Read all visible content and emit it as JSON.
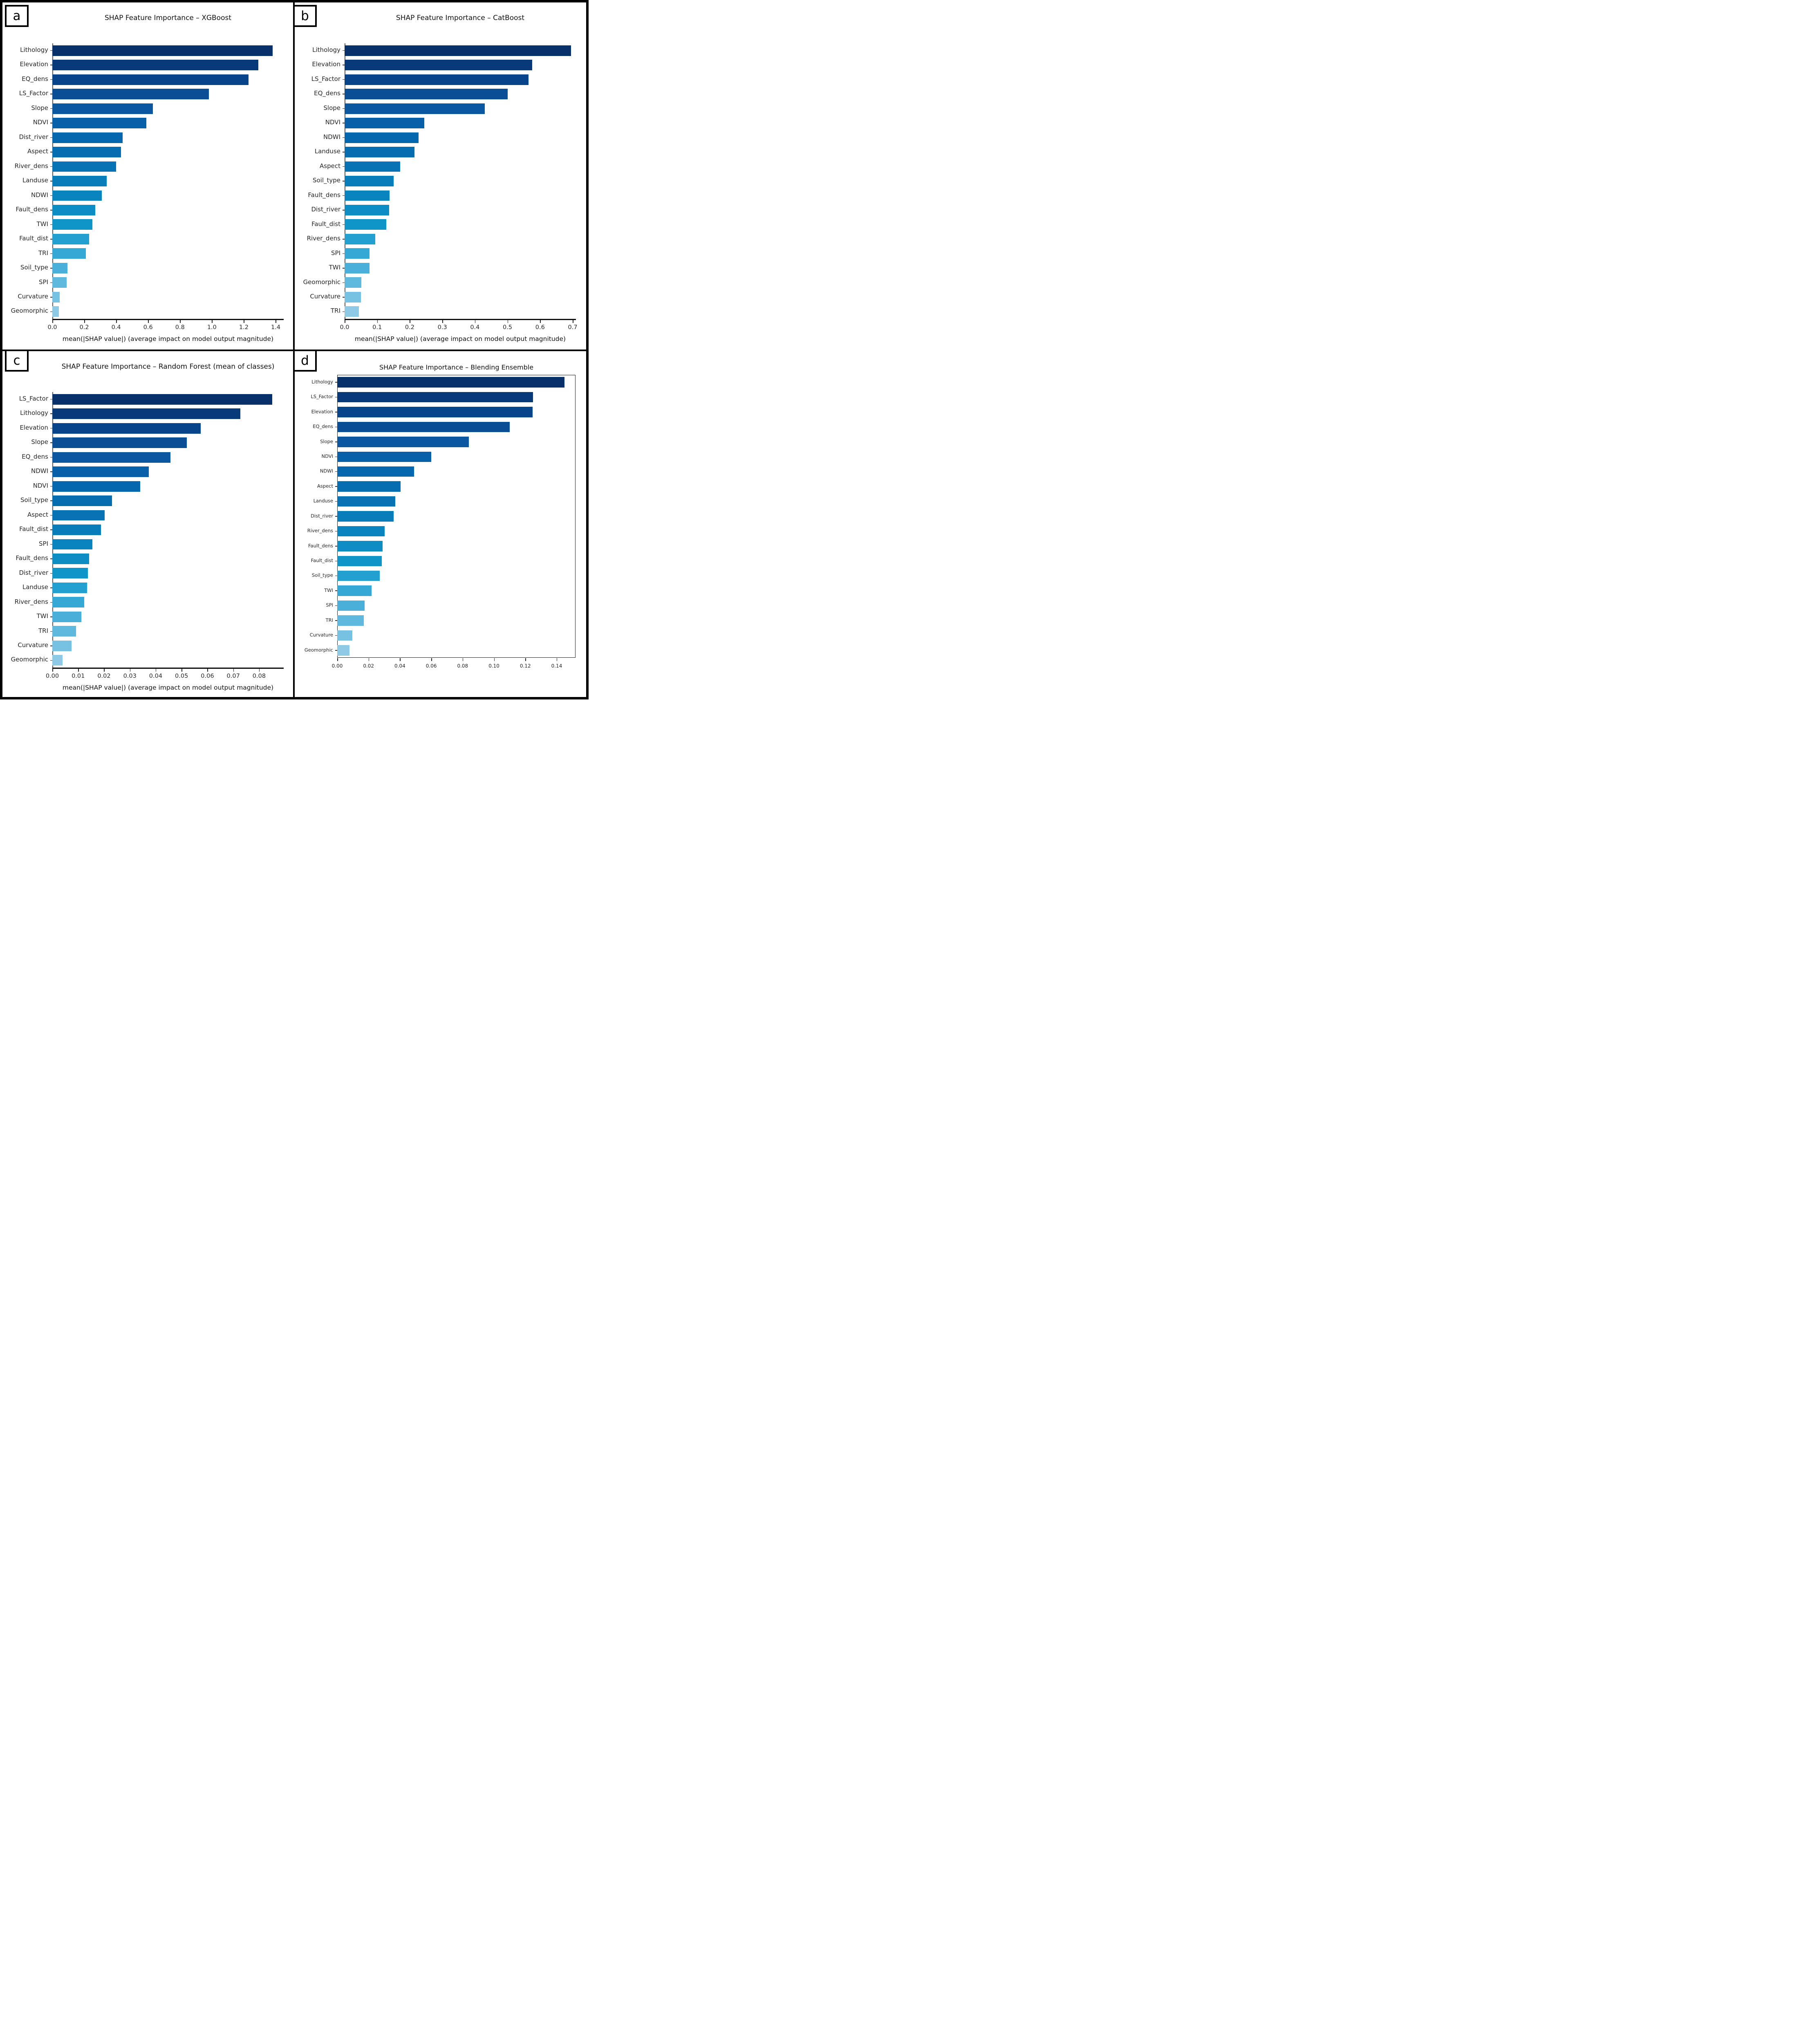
{
  "figure": {
    "panel_letters": [
      "a",
      "b",
      "c",
      "d"
    ],
    "style": {
      "bar_color_ramp": [
        "#08306b",
        "#084489",
        "#0b58a1",
        "#0567ae",
        "#0873b4",
        "#0a84bf",
        "#1095c9",
        "#35a8d6",
        "#5fb8de",
        "#8ecae6"
      ],
      "background": "#ffffff",
      "border_color": "#000000"
    }
  },
  "chart_data": [
    {
      "type": "bar",
      "orientation": "horizontal",
      "panel_letter": "a",
      "title": "SHAP Feature Importance – XGBoost",
      "xlabel": "mean(|SHAP value|) (average impact on model output magnitude)",
      "ylabel": "",
      "xlim": [
        0,
        1.45
      ],
      "grid": false,
      "legend": null,
      "xticks": {
        "values": [
          0.0,
          0.2,
          0.4,
          0.6,
          0.8,
          1.0,
          1.2,
          1.4
        ],
        "labels": [
          "0.0",
          "0.2",
          "0.4",
          "0.6",
          "0.8",
          "1.0",
          "1.2",
          "1.4"
        ]
      },
      "categories": [
        "Lithology",
        "Elevation",
        "EQ_dens",
        "LS_Factor",
        "Slope",
        "NDVI",
        "Dist_river",
        "Aspect",
        "River_dens",
        "Landuse",
        "NDWI",
        "Fault_dens",
        "TWI",
        "Fault_dist",
        "TRI",
        "Soil_type",
        "SPI",
        "Curvature",
        "Geomorphic"
      ],
      "values": [
        1.38,
        1.29,
        1.23,
        0.98,
        0.63,
        0.59,
        0.44,
        0.43,
        0.4,
        0.34,
        0.31,
        0.27,
        0.25,
        0.23,
        0.21,
        0.095,
        0.09,
        0.047,
        0.04
      ]
    },
    {
      "type": "bar",
      "orientation": "horizontal",
      "panel_letter": "b",
      "title": "SHAP Feature Importance – CatBoost",
      "xlabel": "mean(|SHAP value|) (average impact on model output magnitude)",
      "ylabel": "",
      "xlim": [
        0,
        0.71
      ],
      "grid": false,
      "legend": null,
      "xticks": {
        "values": [
          0.0,
          0.1,
          0.2,
          0.3,
          0.4,
          0.5,
          0.6,
          0.7
        ],
        "labels": [
          "0.0",
          "0.1",
          "0.2",
          "0.3",
          "0.4",
          "0.5",
          "0.6",
          "0.7"
        ]
      },
      "categories": [
        "Lithology",
        "Elevation",
        "LS_Factor",
        "EQ_dens",
        "Slope",
        "NDVI",
        "NDWI",
        "Landuse",
        "Aspect",
        "Soil_type",
        "Fault_dens",
        "Dist_river",
        "Fault_dist",
        "River_dens",
        "SPI",
        "TWI",
        "Geomorphic",
        "Curvature",
        "TRI"
      ],
      "values": [
        0.695,
        0.576,
        0.564,
        0.5,
        0.43,
        0.245,
        0.227,
        0.215,
        0.17,
        0.15,
        0.138,
        0.137,
        0.128,
        0.094,
        0.077,
        0.076,
        0.052,
        0.05,
        0.044
      ]
    },
    {
      "type": "bar",
      "orientation": "horizontal",
      "panel_letter": "c",
      "title": "SHAP Feature Importance – Random Forest (mean of classes)",
      "xlabel": "mean(|SHAP value|) (average impact on model output magnitude)",
      "ylabel": "",
      "xlim": [
        0,
        0.0895
      ],
      "grid": false,
      "legend": null,
      "xticks": {
        "values": [
          0.0,
          0.01,
          0.02,
          0.03,
          0.04,
          0.05,
          0.06,
          0.07,
          0.08
        ],
        "labels": [
          "0.00",
          "0.01",
          "0.02",
          "0.03",
          "0.04",
          "0.05",
          "0.06",
          "0.07",
          "0.08"
        ]
      },
      "categories": [
        "LS_Factor",
        "Lithology",
        "Elevation",
        "Slope",
        "EQ_dens",
        "NDWI",
        "NDVI",
        "Soil_type",
        "Aspect",
        "Fault_dist",
        "SPI",
        "Fault_dens",
        "Dist_river",
        "Landuse",
        "River_dens",
        "TWI",
        "TRI",
        "Curvature",
        "Geomorphic"
      ],
      "values": [
        0.085,
        0.0727,
        0.0574,
        0.052,
        0.0457,
        0.0373,
        0.034,
        0.0231,
        0.0203,
        0.0188,
        0.0155,
        0.0143,
        0.0138,
        0.0134,
        0.0123,
        0.0113,
        0.0092,
        0.0074,
        0.004
      ]
    },
    {
      "type": "bar",
      "orientation": "horizontal",
      "panel_letter": "d",
      "title": "SHAP Feature Importance – Blending Ensemble",
      "xlabel": "",
      "ylabel": "",
      "xlim": [
        0,
        0.152
      ],
      "grid": false,
      "legend": null,
      "xticks": {
        "values": [
          0.0,
          0.02,
          0.04,
          0.06,
          0.08,
          0.1,
          0.12,
          0.14
        ],
        "labels": [
          "0.00",
          "0.02",
          "0.04",
          "0.06",
          "0.08",
          "0.10",
          "0.12",
          "0.14"
        ]
      },
      "categories": [
        "Lithology",
        "LS_Factor",
        "Elevation",
        "EQ_dens",
        "Slope",
        "NDVI",
        "NDWI",
        "Aspect",
        "Landuse",
        "Dist_river",
        "River_dens",
        "Fault_dens",
        "Fault_dist",
        "Soil_type",
        "TWI",
        "SPI",
        "TRI",
        "Curvature",
        "Geomorphic"
      ],
      "values": [
        0.145,
        0.125,
        0.1245,
        0.11,
        0.084,
        0.06,
        0.049,
        0.0405,
        0.037,
        0.036,
        0.0303,
        0.029,
        0.0283,
        0.027,
        0.022,
        0.0174,
        0.017,
        0.0096,
        0.0079
      ]
    }
  ]
}
